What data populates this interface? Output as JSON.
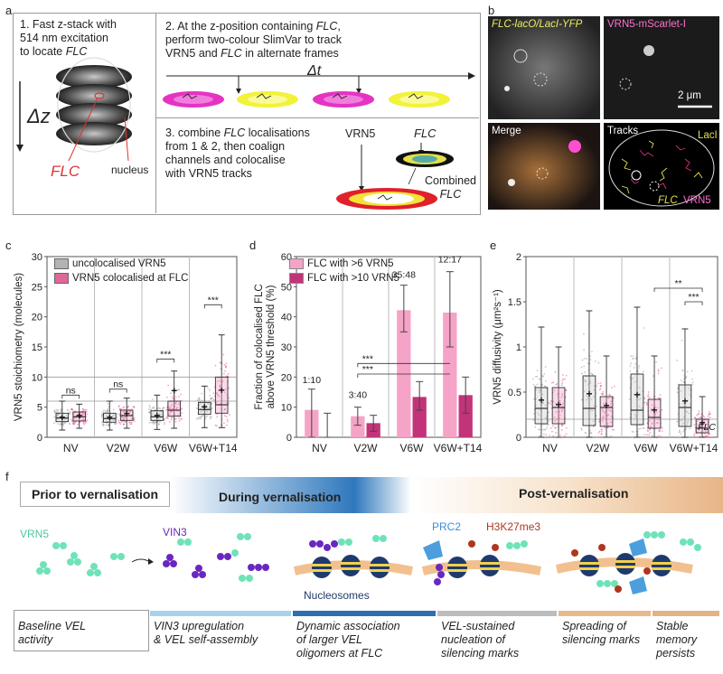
{
  "panel_a": {
    "label": "a",
    "step1": "1. Fast z-stack with 514 nm excitation to locate FLC",
    "step1_parts": [
      "1. Fast z-stack with",
      "514 nm excitation",
      "to locate ",
      "FLC"
    ],
    "dz": "Δz",
    "flc_label": "FLC",
    "nucleus_label": "nucleus",
    "step2_parts": [
      "2. At the z-position containing ",
      "FLC",
      ",",
      "perform two-colour SlimVar to track",
      "VRN5 and ",
      "FLC",
      " in alternate frames"
    ],
    "dt": "Δt",
    "step3_parts": [
      "3. combine ",
      "FLC",
      " localisations",
      "from 1 & 2, then coalign",
      "channels and colocalise",
      "with VRN5 tracks"
    ],
    "vrn5_label": "VRN5",
    "flc_arrow_label": "FLC",
    "combined_label": [
      "Combined",
      "FLC"
    ]
  },
  "panel_b": {
    "label": "b",
    "top_left_title": "FLC-lacO/LacI-YFP",
    "top_right_title": "VRN5-mScarlet-I",
    "scale_bar": "2 μm",
    "merge_title": "Merge",
    "tracks_title": "Tracks",
    "laci_label": "LacI",
    "flc_label": "FLC",
    "vrn5_label": "VRN5"
  },
  "panel_c": {
    "label": "c",
    "ylabel": "VRN5 stoichiometry (molecules)",
    "legend": [
      "uncolocalised VRN5",
      "VRN5 colocalised at FLC"
    ],
    "significance": [
      "ns",
      "ns",
      "***",
      "***"
    ]
  },
  "panel_d": {
    "label": "d",
    "ylabel": [
      "Fraction of colocalised FLC",
      "above VRN5 threshold (%)"
    ],
    "legend": [
      "FLC with >6 VRN5",
      "FLC with >10 VRN5"
    ],
    "ratios": [
      "1:10",
      "3:40",
      "35:48",
      "12:17"
    ],
    "significance": [
      "***",
      "***"
    ]
  },
  "panel_e": {
    "label": "e",
    "ylabel": "VRN5 diffusivity (μm²s⁻¹)",
    "significance": [
      "**",
      "***"
    ],
    "flc_line_label": "FLC"
  },
  "chart_data": [
    {
      "type": "box",
      "panel": "c",
      "title": "",
      "xlabel": "",
      "ylabel": "VRN5 stoichiometry (molecules)",
      "categories": [
        "NV",
        "V2W",
        "V6W",
        "V6W+T14"
      ],
      "ylim": [
        0,
        30
      ],
      "yticks": [
        0,
        5,
        10,
        15,
        20,
        25,
        30
      ],
      "series": [
        {
          "name": "uncolocalised VRN5",
          "color": "#9a9a9a",
          "q1": [
            2.6,
            2.5,
            2.8,
            3.8
          ],
          "median": [
            3.2,
            3.1,
            3.4,
            4.6
          ],
          "q3": [
            4.0,
            4.0,
            4.4,
            5.8
          ],
          "whisker_low": [
            1.2,
            1.2,
            1.3,
            1.6
          ],
          "whisker_high": [
            6.0,
            6.0,
            7.0,
            8.5
          ],
          "mean": [
            3.3,
            3.3,
            3.6,
            5.0
          ]
        },
        {
          "name": "VRN5 colocalised at FLC",
          "color": "#e0679a",
          "q1": [
            2.7,
            2.8,
            3.5,
            4.0
          ],
          "median": [
            3.4,
            3.6,
            4.5,
            5.4
          ],
          "q3": [
            4.2,
            4.5,
            6.0,
            10.0
          ],
          "whisker_low": [
            1.5,
            1.5,
            1.5,
            1.6
          ],
          "whisker_high": [
            5.5,
            6.5,
            11.0,
            17.0
          ],
          "mean": [
            3.6,
            3.9,
            7.7,
            7.8
          ]
        }
      ],
      "reference_lines": [
        6,
        10
      ]
    },
    {
      "type": "bar",
      "panel": "d",
      "ylabel": "Fraction of colocalised FLC above VRN5 threshold (%)",
      "categories": [
        "NV",
        "V2W",
        "V6W",
        "V6W+T14"
      ],
      "ylim": [
        0,
        60
      ],
      "yticks": [
        0,
        10,
        20,
        30,
        40,
        50,
        60
      ],
      "series": [
        {
          "name": "FLC with >6 VRN5",
          "color": "#f5a3c7",
          "values": [
            9.1,
            7.0,
            42.2,
            41.4
          ],
          "err_low": [
            0.0,
            4.0,
            35.0,
            30.0
          ],
          "err_high": [
            16.0,
            10.0,
            50.5,
            55.0
          ]
        },
        {
          "name": "FLC with >10 VRN5",
          "color": "#c2337a",
          "values": [
            0.0,
            4.7,
            13.4,
            14.0
          ],
          "err_low": [
            0.0,
            2.0,
            9.0,
            8.0
          ],
          "err_high": [
            8.0,
            7.3,
            18.5,
            20.0
          ]
        }
      ],
      "annotations": [
        "1:10",
        "3:40",
        "35:48",
        "12:17"
      ]
    },
    {
      "type": "box",
      "panel": "e",
      "ylabel": "VRN5 diffusivity (μm²s⁻¹)",
      "categories": [
        "NV",
        "V2W",
        "V6W",
        "V6W+T14"
      ],
      "ylim": [
        0,
        2
      ],
      "yticks": [
        0,
        0.5,
        1.0,
        1.5,
        2.0
      ],
      "series": [
        {
          "name": "uncolocalised VRN5",
          "color": "#9a9a9a",
          "q1": [
            0.15,
            0.13,
            0.14,
            0.12
          ],
          "median": [
            0.32,
            0.32,
            0.3,
            0.33
          ],
          "q3": [
            0.55,
            0.68,
            0.7,
            0.58
          ],
          "whisker_low": [
            0.0,
            0.0,
            0.0,
            0.0
          ],
          "whisker_high": [
            1.22,
            1.4,
            1.44,
            1.2
          ],
          "mean": [
            0.41,
            0.48,
            0.47,
            0.4
          ]
        },
        {
          "name": "VRN5 colocalised at FLC",
          "color": "#e0679a",
          "q1": [
            0.15,
            0.12,
            0.1,
            0.05
          ],
          "median": [
            0.33,
            0.33,
            0.22,
            0.1
          ],
          "q3": [
            0.55,
            0.45,
            0.42,
            0.2
          ],
          "whisker_low": [
            0.0,
            0.0,
            0.0,
            0.0
          ],
          "whisker_high": [
            1.0,
            0.9,
            0.9,
            0.45
          ],
          "mean": [
            0.36,
            0.35,
            0.3,
            0.16
          ]
        }
      ],
      "reference_lines": [
        0.2
      ]
    }
  ],
  "panel_f": {
    "label": "f",
    "phases": [
      "Prior to vernalisation",
      "During vernalisation",
      "Post-vernalisation"
    ],
    "labels": {
      "vrn5": "VRN5",
      "vin3": "VIN3",
      "prc2": "PRC2",
      "h3k27": "H3K27me3",
      "nucleosomes": "Nucleosomes"
    },
    "stages": [
      [
        "Baseline VEL",
        "activity"
      ],
      [
        "VIN3 upregulation",
        "& VEL self-assembly"
      ],
      [
        "Dynamic association",
        "of larger VEL",
        "oligomers at FLC"
      ],
      [
        "VEL-sustained",
        "nucleation of",
        "silencing marks"
      ],
      [
        "Spreading of",
        "silencing marks"
      ],
      [
        "Stable",
        "memory",
        "persists"
      ]
    ],
    "stage_colors": [
      "#ffffff",
      "#a8d2ec",
      "#2f6fae",
      "#bdbdbd",
      "#e9b98c",
      "#e3b386"
    ]
  }
}
